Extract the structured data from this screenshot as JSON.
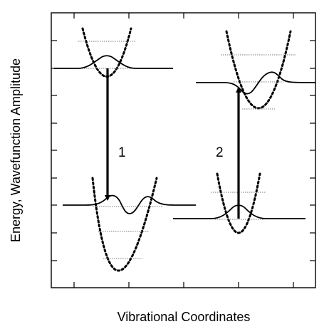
{
  "figure": {
    "ylabel": "Energy, Wavefunction Amplitude",
    "xlabel": "Vibrational Coordinates",
    "transitions": [
      {
        "label": "1"
      },
      {
        "label": "2"
      }
    ]
  },
  "colors": {
    "line": "#000000",
    "background": "#ffffff"
  }
}
